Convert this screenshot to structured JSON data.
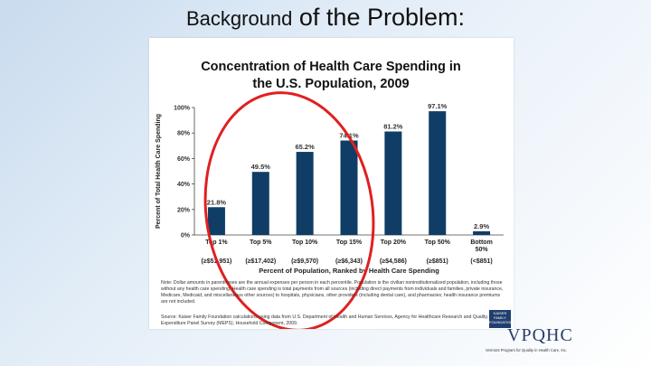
{
  "slide": {
    "title_part1": "Background",
    "title_part2": " of the Problem:"
  },
  "chart_data": {
    "type": "bar",
    "title_line1": "Concentration of Health Care Spending in",
    "title_line2": "the U.S. Population, 2009",
    "categories": [
      "Top 1%",
      "Top 5%",
      "Top 10%",
      "Top 15%",
      "Top 20%",
      "Top 50%",
      "Bottom 50%"
    ],
    "category_lines": [
      [
        "Top 1%"
      ],
      [
        "Top 5%"
      ],
      [
        "Top 10%"
      ],
      [
        "Top 15%"
      ],
      [
        "Top 20%"
      ],
      [
        "Top 50%"
      ],
      [
        "Bottom",
        "50%"
      ]
    ],
    "thresholds": [
      "(≥$51,951)",
      "(≥$17,402)",
      "(≥$9,570)",
      "(≥$6,343)",
      "(≥$4,586)",
      "(≥$851)",
      "(<$851)"
    ],
    "values": [
      21.8,
      49.5,
      65.2,
      74.1,
      81.2,
      97.1,
      2.9
    ],
    "value_labels": [
      "21.8%",
      "49.5%",
      "65.2%",
      "74.1%",
      "81.2%",
      "97.1%",
      "2.9%"
    ],
    "ylim": [
      0,
      100
    ],
    "yticks": [
      0,
      20,
      40,
      60,
      80,
      100
    ],
    "ytick_labels": [
      "0%",
      "20%",
      "40%",
      "60%",
      "80%",
      "100%"
    ],
    "xlabel": "Percent of Population, Ranked by Health Care Spending",
    "ylabel": "Percent of Total Health Care Spending",
    "grid": false,
    "bar_color": "#0f3d66",
    "annotation": {
      "shape": "circle",
      "color": "#e02020"
    }
  },
  "figure": {
    "note": "Note: Dollar amounts in parentheses are the annual expenses per person in each percentile. Population is the civilian noninstitutionalized population, including those without any health care spending. Health care spending is total payments from all sources (including direct payments from individuals and families, private insurance, Medicare, Medicaid, and miscellaneous other sources) to hospitals, physicians, other providers (including dental care), and pharmacies; health insurance premiums are not included.",
    "source": "Source: Kaiser Family Foundation calculations using data from U.S. Department of Health and Human Services, Agency for Healthcare Research and Quality, Medical Expenditure Panel Survey (MEPS), Household Component, 2009."
  },
  "logos": {
    "kff": "KAISER FAMILY FOUNDATION",
    "vpqhc": "VPQHC",
    "vpqhc_tagline": "Vermont Program for Quality in Health Care, Inc."
  }
}
